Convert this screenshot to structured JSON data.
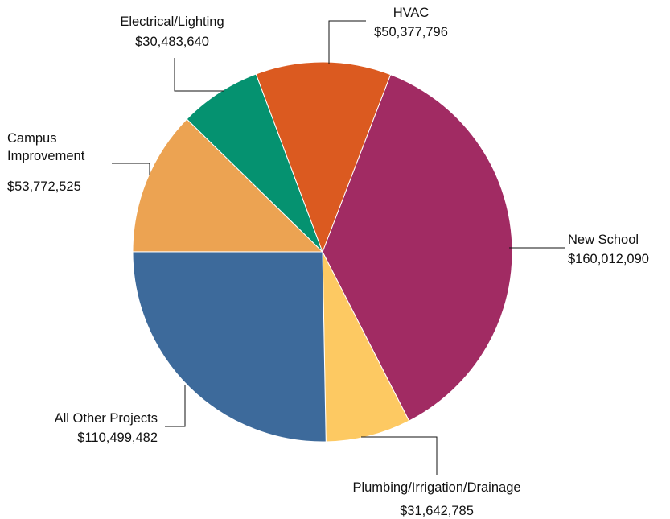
{
  "chart_data": {
    "type": "pie",
    "slices": [
      {
        "label": "New School",
        "value": 160012090,
        "display": "$160,012,090",
        "color": "#a12b63"
      },
      {
        "label": "Plumbing/Irrigation/Drainage",
        "value": 31642785,
        "display": "$31,642,785",
        "color": "#fdc962"
      },
      {
        "label": "All Other Projects",
        "value": 110499482,
        "display": "$110,499,482",
        "color": "#3d6a9b"
      },
      {
        "label": "Campus Improvement",
        "label_lines": [
          "Campus",
          "Improvement"
        ],
        "value": 53772525,
        "display": "$53,772,525",
        "color": "#eca352"
      },
      {
        "label": "Electrical/Lighting",
        "value": 30483640,
        "display": "$30,483,640",
        "color": "#059270"
      },
      {
        "label": "HVAC",
        "value": 50377796,
        "display": "$50,377,796",
        "color": "#db5a20"
      }
    ]
  }
}
